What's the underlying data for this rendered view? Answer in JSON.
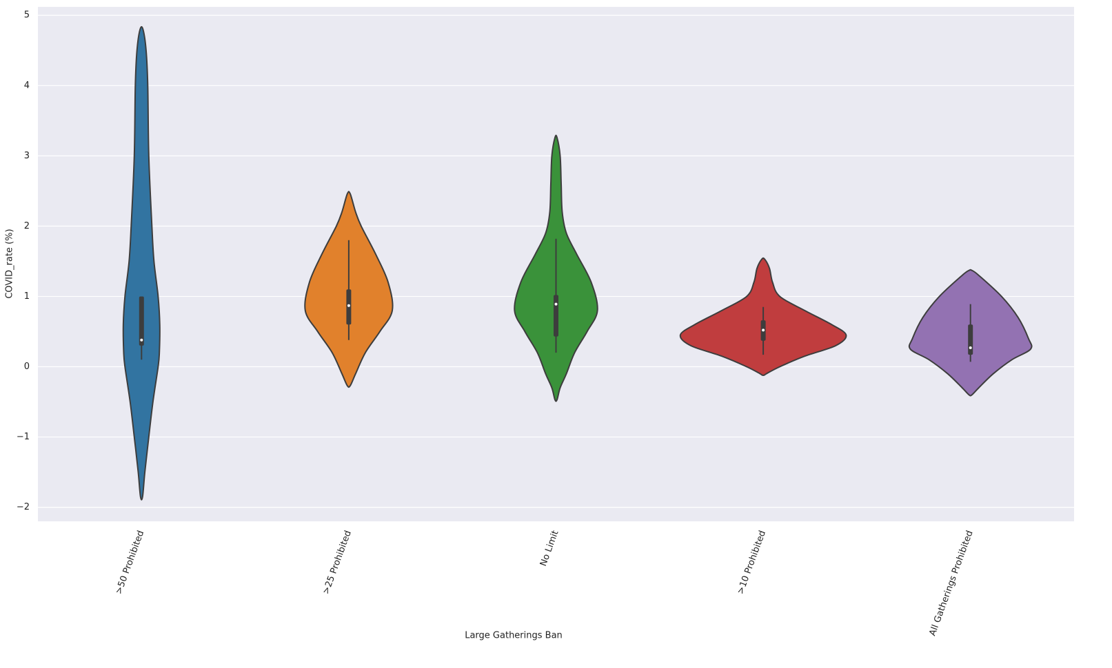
{
  "chart_data": {
    "type": "violin",
    "xlabel": "Large Gatherings Ban",
    "ylabel": "COVID_rate (%)",
    "categories": [
      ">50 Prohibited",
      ">25 Prohibited",
      "No Limit",
      ">10 Prohibited",
      "All Gatherings Prohibited"
    ],
    "ylim": [
      -2.2,
      5.12
    ],
    "yticks": [
      {
        "value": -2,
        "label": "−2"
      },
      {
        "value": -1,
        "label": "−1"
      },
      0,
      1,
      2,
      3,
      4,
      5
    ],
    "grid": true,
    "series": [
      {
        "color": "#3274a1",
        "kde_y": [
          4.8,
          4.5,
          4.0,
          3.0,
          2.0,
          1.5,
          1.0,
          0.6,
          0.2,
          0,
          -0.5,
          -1,
          -1.5,
          -1.85
        ],
        "kde_width": [
          0.007,
          0.022,
          0.03,
          0.035,
          0.05,
          0.06,
          0.08,
          0.088,
          0.086,
          0.08,
          0.055,
          0.035,
          0.016,
          0.005
        ],
        "whisker_low": 0.1,
        "q1": 0.3,
        "median": 0.38,
        "q3": 1.0,
        "whisker_high": 1.0
      },
      {
        "color": "#e1812c",
        "kde_y": [
          2.46,
          2.2,
          2.0,
          1.6,
          1.2,
          0.8,
          0.5,
          0.2,
          -0.1,
          -0.27
        ],
        "kde_width": [
          0.007,
          0.033,
          0.06,
          0.13,
          0.19,
          0.21,
          0.15,
          0.08,
          0.033,
          0.007
        ],
        "whisker_low": 0.38,
        "q1": 0.6,
        "median": 0.87,
        "q3": 1.1,
        "whisker_high": 1.8
      },
      {
        "color": "#3a923a",
        "kde_y": [
          3.26,
          3.0,
          2.6,
          2.2,
          1.9,
          1.6,
          1.2,
          0.8,
          0.5,
          0.2,
          -0.1,
          -0.3,
          -0.47
        ],
        "kde_width": [
          0.005,
          0.02,
          0.025,
          0.03,
          0.05,
          0.1,
          0.17,
          0.2,
          0.15,
          0.09,
          0.05,
          0.02,
          0.005
        ],
        "whisker_low": 0.2,
        "q1": 0.43,
        "median": 0.89,
        "q3": 1.02,
        "whisker_high": 1.82
      },
      {
        "color": "#c03d3e",
        "kde_y": [
          1.53,
          1.4,
          1.2,
          1.0,
          0.8,
          0.6,
          0.45,
          0.3,
          0.15,
          0,
          -0.1,
          -0.12
        ],
        "kde_width": [
          0.007,
          0.03,
          0.045,
          0.08,
          0.2,
          0.33,
          0.4,
          0.35,
          0.2,
          0.08,
          0.015,
          0.005
        ],
        "whisker_low": 0.17,
        "q1": 0.37,
        "median": 0.52,
        "q3": 0.66,
        "whisker_high": 0.85
      },
      {
        "color": "#9372b2",
        "kde_y": [
          1.37,
          1.3,
          1.0,
          0.7,
          0.4,
          0.25,
          0.1,
          -0.1,
          -0.3,
          -0.4
        ],
        "kde_width": [
          0.007,
          0.04,
          0.15,
          0.23,
          0.28,
          0.29,
          0.2,
          0.11,
          0.04,
          0.007
        ],
        "whisker_low": 0.07,
        "q1": 0.17,
        "median": 0.27,
        "q3": 0.6,
        "whisker_high": 0.89
      }
    ]
  }
}
